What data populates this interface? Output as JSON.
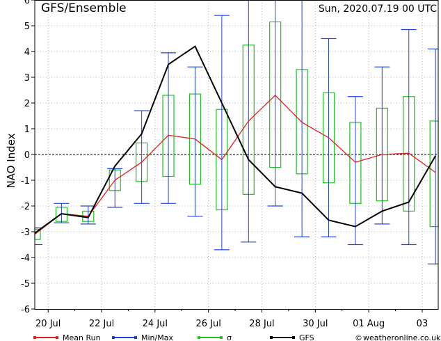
{
  "header": {
    "left": "GFS/Ensemble",
    "right": "Sun, 2020.07.19   00 UTC"
  },
  "chart_data": {
    "type": "line",
    "ylabel": "NAO Index",
    "xlabel": "",
    "ylim": [
      -6,
      6
    ],
    "yticks": [
      -6,
      -5,
      -4,
      -3,
      -2,
      -1,
      0,
      1,
      2,
      3,
      4,
      5,
      6
    ],
    "x_range_days": [
      19.5,
      34.6
    ],
    "xticks": [
      {
        "day": 20,
        "label": "20 Jul"
      },
      {
        "day": 22,
        "label": "22 Jul"
      },
      {
        "day": 24,
        "label": "24 Jul"
      },
      {
        "day": 26,
        "label": "26 Jul"
      },
      {
        "day": 28,
        "label": "28 Jul"
      },
      {
        "day": 30,
        "label": "30 Jul"
      },
      {
        "day": 32,
        "label": "01 Aug"
      },
      {
        "day": 34,
        "label": "03"
      }
    ],
    "x_days": [
      19.5,
      20.5,
      21.5,
      22.5,
      23.5,
      24.5,
      25.5,
      26.5,
      27.5,
      28.5,
      29.5,
      30.5,
      31.5,
      32.5,
      33.5,
      34.5
    ],
    "series": [
      {
        "name": "Mean Run",
        "color": "#e02020",
        "values": [
          -3.1,
          -2.3,
          -2.4,
          -1.0,
          -0.3,
          0.75,
          0.6,
          -0.2,
          1.3,
          2.3,
          1.25,
          0.65,
          -0.3,
          0.0,
          0.05,
          -0.7
        ]
      },
      {
        "name": "GFS",
        "color": "#000000",
        "values": [
          -3.05,
          -2.3,
          -2.45,
          -0.45,
          0.8,
          3.5,
          4.2,
          2.0,
          -0.2,
          -1.25,
          -1.5,
          -2.55,
          -2.8,
          -2.2,
          -1.85,
          -0.05
        ]
      }
    ],
    "minmax": {
      "name": "Min/Max",
      "color": "#2040e0",
      "min": [
        -3.5,
        -2.65,
        -2.7,
        -2.05,
        -1.9,
        -1.9,
        -2.4,
        -3.7,
        -3.4,
        -2.0,
        -3.2,
        -3.2,
        -3.5,
        -2.7,
        -3.5,
        -4.25
      ],
      "max": [
        -2.85,
        -1.9,
        -2.0,
        -0.55,
        1.7,
        3.95,
        3.4,
        5.4,
        6.0,
        6.0,
        6.0,
        4.5,
        2.25,
        3.4,
        4.85,
        4.1
      ]
    },
    "sigma": {
      "name": "σ",
      "color": "#20c020",
      "low": [
        -3.3,
        -2.6,
        -2.6,
        -1.4,
        -1.05,
        -0.85,
        -1.15,
        -2.15,
        -1.55,
        -0.5,
        -0.75,
        -1.1,
        -1.9,
        -1.8,
        -2.2,
        -2.8
      ],
      "high": [
        -2.9,
        -2.05,
        -2.2,
        -0.6,
        0.45,
        2.3,
        2.35,
        1.75,
        4.25,
        5.15,
        3.3,
        2.4,
        1.25,
        1.8,
        2.25,
        1.3
      ]
    },
    "legend": [
      {
        "name": "Mean Run",
        "color": "#e02020"
      },
      {
        "name": "Min/Max",
        "color": "#2040e0"
      },
      {
        "name": "σ",
        "color": "#20c020"
      },
      {
        "name": "GFS",
        "color": "#000000"
      }
    ],
    "legend_position": "bottom",
    "grid": true
  },
  "footer": {
    "copyright_symbol": "©",
    "credit": "weatheronline.co.uk"
  }
}
